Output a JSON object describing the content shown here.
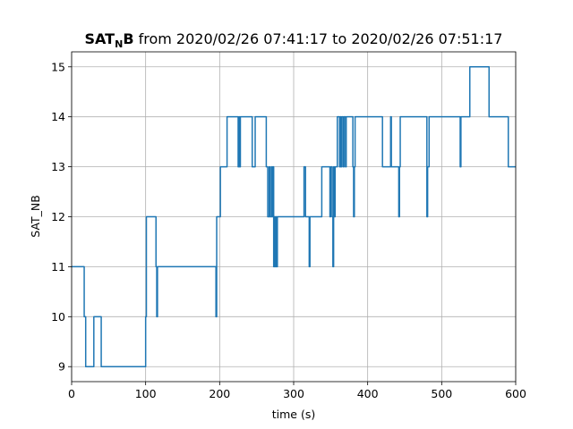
{
  "chart_data": {
    "type": "line",
    "title": {
      "bold_main": "SAT",
      "bold_sub": "N",
      "bold_end": "B",
      "rest": " from 2020/02/26 07:41:17 to 2020/02/26 07:51:17"
    },
    "xlabel": "time (s)",
    "ylabel": "SAT_NB",
    "xlim": [
      0,
      600
    ],
    "ylim": [
      8.7,
      15.3
    ],
    "xticks": [
      0,
      100,
      200,
      300,
      400,
      500,
      600
    ],
    "yticks": [
      9,
      10,
      11,
      12,
      13,
      14,
      15
    ],
    "grid": true,
    "line_color": "#1f77b4",
    "series": [
      {
        "step": "post",
        "x": [
          0,
          17,
          18,
          19,
          30,
          32,
          40,
          100,
          101,
          102,
          103,
          114,
          115,
          116,
          117,
          118,
          195,
          196,
          198,
          199,
          201,
          204,
          210,
          225,
          226,
          227,
          228,
          229,
          230,
          233,
          244,
          248,
          252,
          263,
          265,
          267,
          268,
          270,
          271,
          272,
          273,
          274,
          275,
          276,
          277,
          278,
          279,
          280,
          281,
          314,
          315,
          316,
          318,
          320,
          321,
          322,
          338,
          349,
          350,
          351,
          352,
          353,
          354,
          355,
          356,
          358,
          359,
          362,
          363,
          364,
          365,
          366,
          367,
          368,
          369,
          370,
          371,
          372,
          380,
          381,
          382,
          383,
          385,
          420,
          430,
          431,
          432,
          433,
          441,
          442,
          443,
          444,
          445,
          448,
          480,
          481,
          482,
          483,
          484,
          487,
          488,
          524,
          525,
          526,
          527,
          528,
          538,
          540,
          564,
          565,
          566,
          580,
          590,
          600
        ],
        "y": [
          11,
          10,
          10,
          9,
          10,
          10,
          9,
          10,
          12,
          12,
          12,
          11,
          10,
          11,
          11,
          11,
          10,
          12,
          12,
          12,
          13,
          13,
          14,
          13,
          14,
          13,
          14,
          14,
          14,
          14,
          13,
          14,
          14,
          13,
          12,
          13,
          12,
          13,
          12,
          13,
          11,
          12,
          11,
          12,
          11,
          12,
          12,
          12,
          12,
          13,
          13,
          12,
          12,
          12,
          11,
          12,
          13,
          12,
          13,
          13,
          12,
          11,
          13,
          12,
          13,
          13,
          14,
          13,
          14,
          13,
          14,
          14,
          13,
          14,
          14,
          13,
          14,
          14,
          13,
          12,
          13,
          14,
          14,
          13,
          13,
          14,
          13,
          13,
          13,
          12,
          13,
          14,
          14,
          14,
          12,
          13,
          13,
          14,
          14,
          14,
          14,
          14,
          13,
          14,
          14,
          14,
          15,
          15,
          14,
          14,
          14,
          14,
          13,
          13
        ]
      }
    ]
  }
}
